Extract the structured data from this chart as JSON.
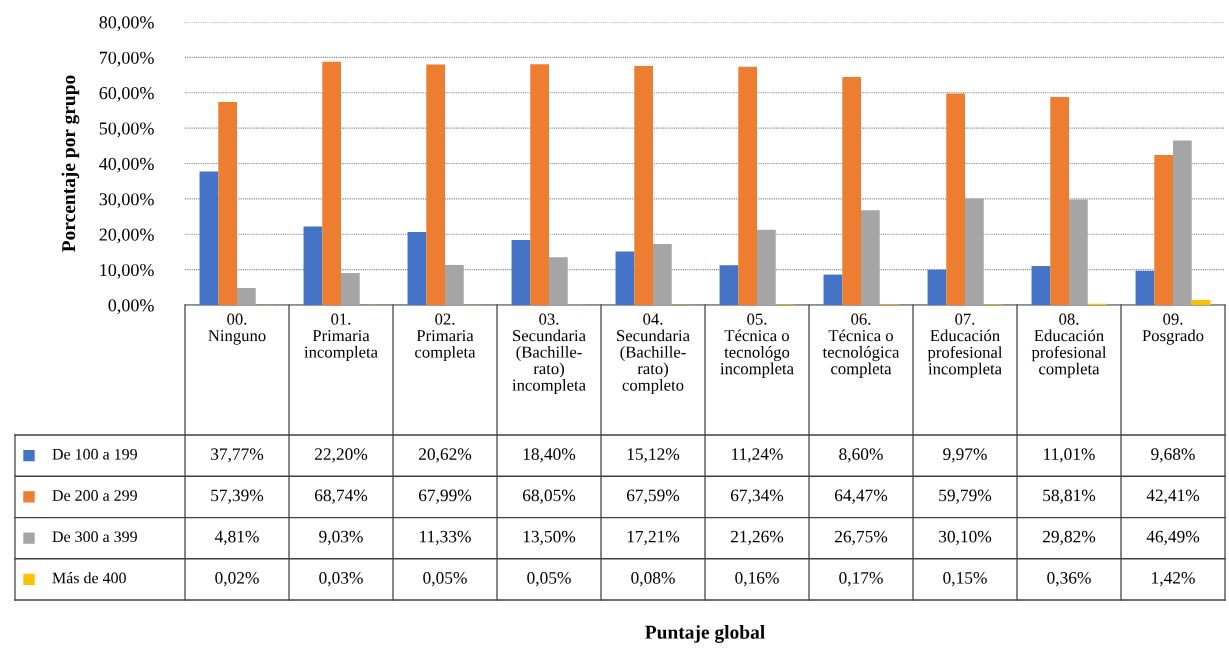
{
  "chart_data": {
    "type": "bar",
    "annotations": [
      "Puntaje global"
    ],
    "ylabel": "Porcentaje por grupo",
    "categories": [
      "00.\nNinguno",
      "01.\nPrimaria\nincompleta",
      "02.\nPrimaria\ncompleta",
      "03.\nSecundaria\n(Bachille-\nrato)\nincompleta",
      "04.\nSecundaria\n(Bachille-\nrato)\ncompleto",
      "05.\nTécnica o\ntecnológo\nincompleta",
      "06.\nTécnica o\ntecnológica\ncompleta",
      "07.\nEducación\nprofesional\nincompleta",
      "08.\nEducación\nprofesional\ncompleta",
      "09.\nPosgrado"
    ],
    "series": [
      {
        "name": "De 100 a 199",
        "color": "#4472c4",
        "values": [
          37.77,
          22.2,
          20.62,
          18.4,
          15.12,
          11.24,
          8.6,
          9.97,
          11.01,
          9.68
        ],
        "value_labels": [
          "37,77%",
          "22,20%",
          "20,62%",
          "18,40%",
          "15,12%",
          "11,24%",
          "8,60%",
          "9,97%",
          "11,01%",
          "9,68%"
        ]
      },
      {
        "name": "De 200 a 299",
        "color": "#ed7d31",
        "values": [
          57.39,
          68.74,
          67.99,
          68.05,
          67.59,
          67.34,
          64.47,
          59.79,
          58.81,
          42.41
        ],
        "value_labels": [
          "57,39%",
          "68,74%",
          "67,99%",
          "68,05%",
          "67,59%",
          "67,34%",
          "64,47%",
          "59,79%",
          "58,81%",
          "42,41%"
        ]
      },
      {
        "name": "De 300 a 399",
        "color": "#a5a5a5",
        "values": [
          4.81,
          9.03,
          11.33,
          13.5,
          17.21,
          21.26,
          26.75,
          30.1,
          29.82,
          46.49
        ],
        "value_labels": [
          "4,81%",
          "9,03%",
          "11,33%",
          "13,50%",
          "17,21%",
          "21,26%",
          "26,75%",
          "30,10%",
          "29,82%",
          "46,49%"
        ]
      },
      {
        "name": "Más de 400",
        "color": "#ffc000",
        "values": [
          0.02,
          0.03,
          0.05,
          0.05,
          0.08,
          0.16,
          0.17,
          0.15,
          0.36,
          1.42
        ],
        "value_labels": [
          "0,02%",
          "0,03%",
          "0,05%",
          "0,05%",
          "0,08%",
          "0,16%",
          "0,17%",
          "0,15%",
          "0,36%",
          "1,42%"
        ]
      }
    ],
    "ylim": [
      0,
      80
    ],
    "yticks": [
      {
        "value": 0,
        "label": "0,00%"
      },
      {
        "value": 10,
        "label": "10,00%"
      },
      {
        "value": 20,
        "label": "20,00%"
      },
      {
        "value": 30,
        "label": "30,00%"
      },
      {
        "value": 40,
        "label": "40,00%"
      },
      {
        "value": 50,
        "label": "50,00%"
      },
      {
        "value": 60,
        "label": "60,00%"
      },
      {
        "value": 70,
        "label": "70,00%"
      },
      {
        "value": 80,
        "label": "80,00%"
      }
    ],
    "grid": "y",
    "legend": "bottom left"
  }
}
